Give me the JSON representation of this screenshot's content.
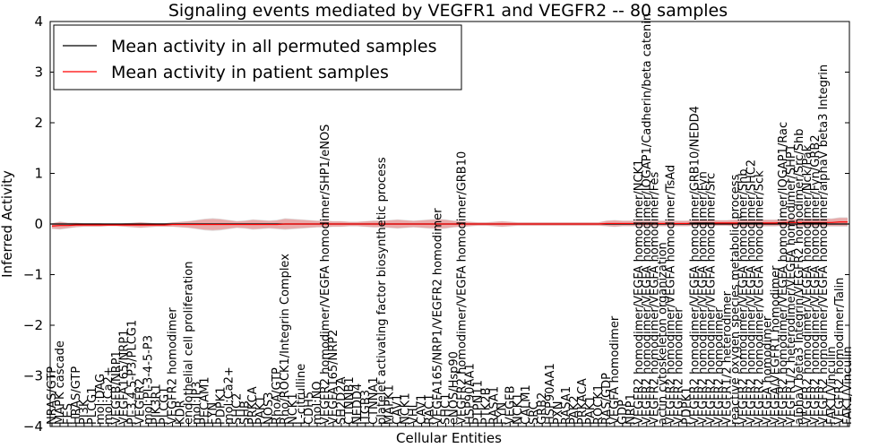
{
  "chart_data": {
    "type": "line",
    "title": "Signaling events mediated by VEGFR1 and VEGFR2 -- 80 samples",
    "xlabel": "Cellular Entities",
    "ylabel": "Inferred Activity",
    "ylim": [
      -4,
      4
    ],
    "yticks": [
      "−4",
      "−3",
      "−2",
      "−1",
      "0",
      "1",
      "2",
      "3",
      "4"
    ],
    "legend": {
      "placement": "top-left",
      "entries": [
        {
          "label": "Mean activity in all permuted samples",
          "color": "#000000"
        },
        {
          "label": "Mean activity in patient samples",
          "color": "#ff0000"
        }
      ]
    },
    "colors": {
      "band": "#f08080",
      "permuted_band": "#c8c8c8",
      "patient": "#ff0000",
      "permuted": "#000000"
    },
    "categories": [
      "NRAS/GTP",
      "MAPK cascade",
      "FES",
      "HRAS/GTP",
      "PI3K",
      "PLCG1",
      "mol:DAG",
      "mol:Ca2+",
      "VEGFB/NRP1",
      "VEGFA165/NRP1",
      "PI-3,4,5-P3/PLCG1",
      "VEGFR2",
      "mol:PI-3-4-5-P3",
      "PIK3R1",
      "PLCG1",
      "VEGFR2 homodimer",
      "KDR",
      "endothelial cell proliferation",
      "mol:IP3",
      "PECAM1",
      "FYN",
      "PDPK1",
      "mol:Ca2+",
      "SHC2",
      "SHB",
      "PRKCA",
      "PAK1",
      "NOS3",
      "RhoA/GTP",
      "Rho/ROCK1/Integrin Complex",
      "NCK1",
      "L-citrulline",
      "CDH5",
      "mol:NO",
      "VEGFR2 homodimer/VEGFA homodimer/SHP1/eNOS",
      "VEGFA165/NRP2",
      "SH2D2A",
      "CTNNB1",
      "NEDD4",
      "ITGB3",
      "CTNNA1",
      "platelet activating factor biosynthetic process",
      "MAPK1",
      "CAV1",
      "NCK1",
      "VHL",
      "CAV1",
      "RAC1",
      "VEGFA165/NRP1/VEGFR2 homodimer",
      "SHC1",
      "eNOS/Hsp90",
      "VEGFR2 homodimer/VEGFA homodimer/GRB10",
      "HSP90AA1",
      "PTPN11",
      "PTK2B",
      "RASA1",
      "FYN",
      "VEGFB",
      "NCK1",
      "CALM1",
      "SRC",
      "GRB2",
      "HSP90AA1",
      "PXN",
      "RASA1",
      "PAK2",
      "PRKACA",
      "PAK1",
      "ROCK1",
      "RAS/GDP",
      "VEGFA homodimer",
      "GDP",
      "NRP1",
      "VEGFR2 homodimer/VEGFA homodimer/NCK1",
      "VEGFR2 homodimer/VEGFA homodimer/IQGAP1/Cadherin/beta catenin",
      "VEGFR2 homodimer/VEGFA homodimer/Fes",
      "actin cytoskeleton organization",
      "VEGFR2 homodimer/VEGFA homodimer/TsAd",
      "VEGFR2 homodimer",
      "PDPK1",
      "VEGFR2 homodimer/VEGFA homodimer/GRB10/NEDD4",
      "VEGFR2 homodimer/VEGFA homodimer/Fyn",
      "VEGFR2 homodimer/VEGFA homodimer/Src",
      "VEGFR2 homodimer",
      "VEGFR1/2 heterodimer",
      "reactive oxygen species metabolic process",
      "VEGFR2 homodimer/VEGFA homodimer/Shb",
      "VEGFR2 homodimer/VEGFA homodimer/SHC2",
      "VEGFR2 homodimer/VEGFA homodimer/Sck",
      "VEGFA homodimer",
      "VEGFA/VEGFR1 homodimer",
      "VEGFR2 homodimer/VEGFA homodimer/IQGAP1/Rac",
      "VEGFR1/2 heterodimer/VEGFA homodimer/SHP1",
      "alphaV beta3 Integrin/VEGFR2 homodimer/Src/Shb",
      "VEGFR2 homodimer/VEGFA homodimer/Nck/Pak",
      "VEGFR2 homodimer/VEGFA homodimer/Fyn/GRB2",
      "VEGFR2 homodimer/VEGFA homodimer/alphaV beta3 Integrin",
      "FAK1/Vinculin",
      "VEGFR2 homodimer/Talin",
      "FAK1/Vinculin"
    ],
    "patient_values": [
      -0.04,
      -0.03,
      -0.03,
      -0.02,
      -0.02,
      -0.02,
      -0.02,
      -0.02,
      -0.02,
      -0.02,
      -0.02,
      -0.02,
      -0.02,
      -0.02,
      -0.02,
      -0.01,
      -0.01,
      -0.01,
      -0.01,
      -0.01,
      -0.01,
      -0.01,
      -0.01,
      -0.01,
      -0.01,
      -0.01,
      -0.01,
      -0.01,
      -0.01,
      0.0,
      0.0,
      0.0,
      0.0,
      0.0,
      0.0,
      0.0,
      0.0,
      0.0,
      0.0,
      0.0,
      0.0,
      0.0,
      0.0,
      0.0,
      0.0,
      0.0,
      0.0,
      0.0,
      0.0,
      0.0,
      0.0,
      0.0,
      0.0,
      0.0,
      0.0,
      0.0,
      0.0,
      0.0,
      0.0,
      0.0,
      0.0,
      0.0,
      0.0,
      0.0,
      0.0,
      0.0,
      0.0,
      0.0,
      0.0,
      0.01,
      0.01,
      0.01,
      0.01,
      0.01,
      0.01,
      0.01,
      0.01,
      0.01,
      0.01,
      0.01,
      0.02,
      0.02,
      0.02,
      0.02,
      0.02,
      0.02,
      0.02,
      0.02,
      0.02,
      0.02,
      0.02,
      0.03,
      0.03,
      0.03,
      0.03,
      0.03,
      0.03,
      0.03,
      0.04,
      0.04
    ],
    "band_halfwidth": [
      0.05,
      0.07,
      0.05,
      0.04,
      0.03,
      0.03,
      0.03,
      0.02,
      0.02,
      0.03,
      0.04,
      0.05,
      0.04,
      0.03,
      0.03,
      0.04,
      0.05,
      0.06,
      0.08,
      0.1,
      0.11,
      0.1,
      0.08,
      0.06,
      0.07,
      0.09,
      0.08,
      0.07,
      0.08,
      0.1,
      0.09,
      0.08,
      0.07,
      0.06,
      0.06,
      0.05,
      0.05,
      0.04,
      0.04,
      0.05,
      0.06,
      0.06,
      0.07,
      0.08,
      0.07,
      0.06,
      0.07,
      0.08,
      0.09,
      0.08,
      0.06,
      0.05,
      0.04,
      0.03,
      0.03,
      0.04,
      0.05,
      0.04,
      0.03,
      0.03,
      0.03,
      0.03,
      0.03,
      0.03,
      0.03,
      0.03,
      0.03,
      0.03,
      0.03,
      0.05,
      0.06,
      0.05,
      0.05,
      0.05,
      0.05,
      0.05,
      0.05,
      0.05,
      0.05,
      0.05,
      0.05,
      0.05,
      0.05,
      0.05,
      0.05,
      0.06,
      0.06,
      0.06,
      0.06,
      0.06,
      0.06,
      0.06,
      0.06,
      0.07,
      0.07,
      0.07,
      0.07,
      0.07,
      0.08,
      0.08
    ]
  }
}
